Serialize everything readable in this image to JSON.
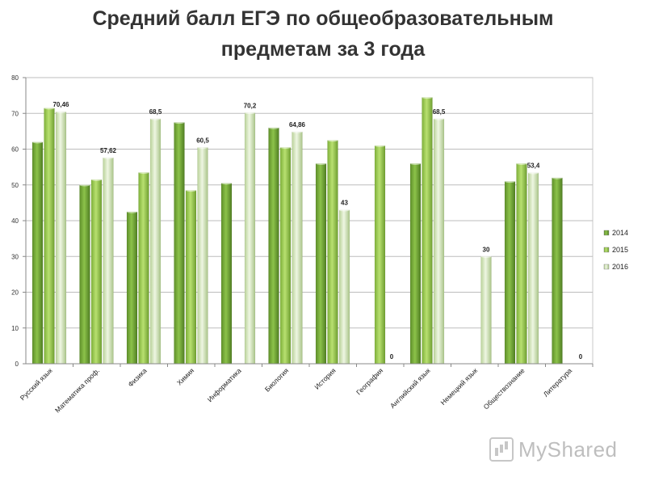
{
  "title_line1": "Средний балл ЕГЭ по общеобразовательным",
  "title_line2": "предметам за 3 года",
  "watermark": "MyShared",
  "chart_data": {
    "type": "bar",
    "title": "Средний балл ЕГЭ по общеобразовательным предметам за 3 года",
    "xlabel": "",
    "ylabel": "",
    "ylim": [
      0,
      80
    ],
    "yticks": [
      0,
      10,
      20,
      30,
      40,
      50,
      60,
      70,
      80
    ],
    "grid": true,
    "legend_position": "right",
    "categories": [
      "Русский язык",
      "Математика проф.",
      "Физика",
      "Химия",
      "Информатика",
      "Биология",
      "История",
      "География",
      "Английский язык",
      "Немецкий язык",
      "Обществознание",
      "Литература"
    ],
    "series": [
      {
        "name": "2014",
        "color": "#76a83a",
        "values": [
          62,
          50,
          42.5,
          67.5,
          50.5,
          66,
          56,
          null,
          56,
          null,
          51,
          52
        ]
      },
      {
        "name": "2015",
        "color": "#9acd50",
        "values": [
          71.5,
          51.5,
          53.5,
          48.5,
          null,
          60.5,
          62.5,
          61,
          74.5,
          null,
          56,
          null
        ]
      },
      {
        "name": "2016",
        "color": "#d4e7b4",
        "values": [
          70.46,
          57.62,
          68.5,
          60.5,
          70.2,
          64.86,
          43,
          0,
          68.5,
          30,
          53.4,
          0
        ]
      }
    ],
    "data_labels_2016": [
      "70,46",
      "57,62",
      "68,5",
      "60,5",
      "70,2",
      "64,86",
      "43",
      "0",
      "68,5",
      "30",
      "53,4",
      "0"
    ]
  }
}
